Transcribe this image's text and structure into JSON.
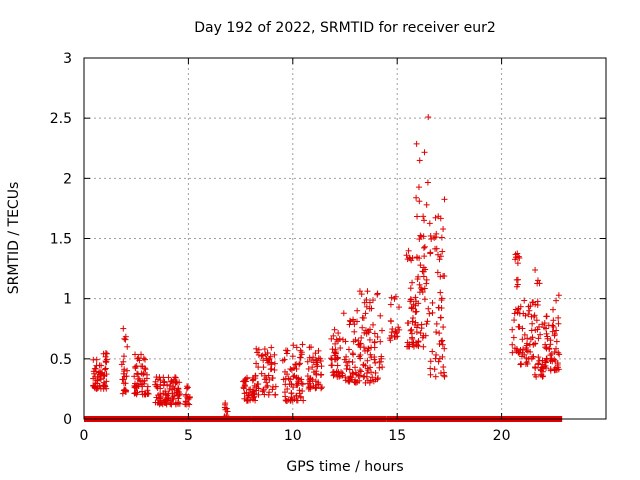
{
  "chart_data": {
    "type": "scatter",
    "title": "Day 192 of 2022, SRMTID for receiver eur2",
    "xlabel": "GPS time / hours",
    "ylabel": "SRMTID / TECUs",
    "xlim": [
      0,
      25
    ],
    "ylim": [
      0,
      3
    ],
    "xticks": [
      0,
      5,
      10,
      15,
      20
    ],
    "xtick_labels": [
      "0",
      "5",
      "10",
      "15",
      "20"
    ],
    "yticks": [
      0,
      0.5,
      1,
      1.5,
      2,
      2.5,
      3
    ],
    "ytick_labels": [
      "0",
      "0.5",
      "1",
      "1.5",
      "2",
      "2.5",
      "3"
    ],
    "grid": true,
    "marker": "plus",
    "color": "#e00000",
    "series": [
      {
        "name": "SRMTID",
        "clusters": [
          {
            "x": [
              0.4,
              1.1
            ],
            "y": [
              0.25,
              0.55
            ],
            "n": 60
          },
          {
            "x": [
              1.8,
              2.1
            ],
            "y": [
              0.2,
              0.8
            ],
            "n": 25
          },
          {
            "x": [
              2.4,
              3.1
            ],
            "y": [
              0.2,
              0.55
            ],
            "n": 55
          },
          {
            "x": [
              3.4,
              4.0
            ],
            "y": [
              0.12,
              0.35
            ],
            "n": 50
          },
          {
            "x": [
              4.0,
              4.6
            ],
            "y": [
              0.12,
              0.35
            ],
            "n": 45
          },
          {
            "x": [
              4.8,
              5.1
            ],
            "y": [
              0.12,
              0.28
            ],
            "n": 15
          },
          {
            "x": [
              6.6,
              6.9
            ],
            "y": [
              0.02,
              0.15
            ],
            "n": 8
          },
          {
            "x": [
              7.6,
              8.2
            ],
            "y": [
              0.15,
              0.35
            ],
            "n": 40
          },
          {
            "x": [
              8.2,
              9.2
            ],
            "y": [
              0.2,
              0.6
            ],
            "n": 60
          },
          {
            "x": [
              9.5,
              10.5
            ],
            "y": [
              0.15,
              0.65
            ],
            "n": 70
          },
          {
            "x": [
              10.7,
              11.4
            ],
            "y": [
              0.25,
              0.6
            ],
            "n": 50
          },
          {
            "x": [
              11.8,
              12.4
            ],
            "y": [
              0.35,
              0.75
            ],
            "n": 40
          },
          {
            "x": [
              12.4,
              13.2
            ],
            "y": [
              0.3,
              0.9
            ],
            "n": 50
          },
          {
            "x": [
              13.2,
              14.3
            ],
            "y": [
              0.3,
              1.1
            ],
            "n": 80
          },
          {
            "x": [
              14.6,
              15.1
            ],
            "y": [
              0.65,
              1.05
            ],
            "n": 20
          },
          {
            "x": [
              15.4,
              15.9
            ],
            "y": [
              0.6,
              1.45
            ],
            "n": 40
          },
          {
            "x": [
              15.9,
              16.5
            ],
            "y": [
              0.6,
              2.55
            ],
            "n": 60
          },
          {
            "x": [
              16.5,
              17.3
            ],
            "y": [
              0.35,
              1.85
            ],
            "n": 60
          },
          {
            "x": [
              20.5,
              20.9
            ],
            "y": [
              0.55,
              1.4
            ],
            "n": 30
          },
          {
            "x": [
              20.9,
              21.5
            ],
            "y": [
              0.45,
              1.0
            ],
            "n": 40
          },
          {
            "x": [
              21.5,
              22.0
            ],
            "y": [
              0.35,
              1.25
            ],
            "n": 40
          },
          {
            "x": [
              22.0,
              22.4
            ],
            "y": [
              0.4,
              0.9
            ],
            "n": 30
          },
          {
            "x": [
              22.4,
              22.8
            ],
            "y": [
              0.4,
              1.1
            ],
            "n": 30
          }
        ],
        "zero_ranges": [
          [
            0,
            8.0
          ],
          [
            8.0,
            14.5
          ],
          [
            14.5,
            22.9
          ]
        ]
      }
    ]
  }
}
